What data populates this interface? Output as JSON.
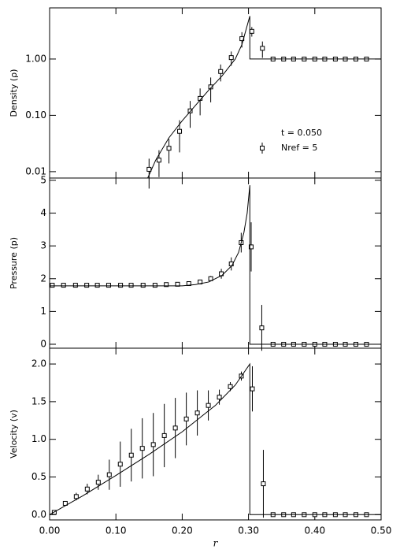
{
  "chart_data": [
    {
      "type": "line",
      "ylabel": "Density (ρ)",
      "log_y": true,
      "xlim": [
        0,
        0.5
      ],
      "xticks": [
        0,
        0.1,
        0.2,
        0.3,
        0.4,
        0.5
      ],
      "ylim": [
        0.0077,
        8.1
      ],
      "yticks": [
        {
          "value": 0.01,
          "label": "0.01"
        },
        {
          "value": 0.1,
          "label": "0.10"
        },
        {
          "value": 1,
          "label": "1.00"
        }
      ],
      "annotation": "t = 0.050",
      "series": [
        {
          "name": "Nref = 5",
          "style": "points",
          "color": "#000000",
          "x": [
            0.15,
            0.165,
            0.18,
            0.196,
            0.212,
            0.227,
            0.243,
            0.258,
            0.274,
            0.29,
            0.305,
            0.321,
            0.337,
            0.353,
            0.368,
            0.384,
            0.4,
            0.415,
            0.431,
            0.446,
            0.462,
            0.478
          ],
          "values": [
            0.011,
            0.016,
            0.026,
            0.052,
            0.12,
            0.2,
            0.32,
            0.6,
            1.06,
            2.3,
            3.1,
            1.55,
            1,
            1,
            1,
            1,
            1,
            1,
            1,
            1,
            1,
            1
          ],
          "errors": [
            0.006,
            0.008,
            0.012,
            0.03,
            0.06,
            0.1,
            0.15,
            0.2,
            0.3,
            0.7,
            0.6,
            0.5,
            0,
            0,
            0,
            0,
            0,
            0,
            0,
            0,
            0,
            0
          ]
        },
        {
          "style": "line",
          "color": "#000000",
          "x": [
            0.148,
            0.16,
            0.18,
            0.2,
            0.22,
            0.24,
            0.26,
            0.28,
            0.29,
            0.302,
            0.302,
            0.5
          ],
          "values": [
            0.0077,
            0.016,
            0.04,
            0.08,
            0.15,
            0.28,
            0.5,
            1.0,
            1.8,
            5.8,
            1.0,
            1.0
          ]
        }
      ]
    },
    {
      "type": "line",
      "ylabel": "Pressure (p)",
      "xlim": [
        0,
        0.5
      ],
      "xticks": [
        0,
        0.1,
        0.2,
        0.3,
        0.4,
        0.5
      ],
      "ylim": [
        -0.12,
        5.07
      ],
      "yticks": [
        0,
        1,
        2,
        3,
        4,
        5
      ],
      "series": [
        {
          "style": "points",
          "color": "#000000",
          "x": [
            0.004,
            0.021,
            0.039,
            0.056,
            0.072,
            0.089,
            0.107,
            0.123,
            0.141,
            0.159,
            0.176,
            0.193,
            0.21,
            0.227,
            0.243,
            0.259,
            0.274,
            0.289,
            0.304,
            0.32,
            0.337,
            0.353,
            0.368,
            0.384,
            0.4,
            0.415,
            0.431,
            0.446,
            0.462,
            0.478
          ],
          "values": [
            1.8,
            1.8,
            1.8,
            1.8,
            1.8,
            1.8,
            1.8,
            1.8,
            1.8,
            1.8,
            1.82,
            1.83,
            1.85,
            1.9,
            2.0,
            2.15,
            2.45,
            3.1,
            2.97,
            0.5,
            0,
            0,
            0,
            0,
            0,
            0,
            0,
            0,
            0,
            0
          ],
          "errors": [
            0.03,
            0.03,
            0.03,
            0.03,
            0.03,
            0.03,
            0.03,
            0.03,
            0.03,
            0.03,
            0.03,
            0.03,
            0.04,
            0.05,
            0.08,
            0.15,
            0.2,
            0.3,
            0.75,
            0.7,
            0.03,
            0.03,
            0.03,
            0.03,
            0.03,
            0.03,
            0.03,
            0.03,
            0.03,
            0.03
          ]
        },
        {
          "style": "line",
          "color": "#000000",
          "x": [
            0,
            0.2,
            0.22,
            0.24,
            0.26,
            0.275,
            0.285,
            0.293,
            0.298,
            0.302,
            0.302,
            0.5
          ],
          "values": [
            1.78,
            1.78,
            1.82,
            1.9,
            2.1,
            2.4,
            2.8,
            3.4,
            4.0,
            4.85,
            0,
            0
          ]
        }
      ]
    },
    {
      "type": "line",
      "ylabel": "Velocity (v)",
      "xlabel": "r",
      "xlim": [
        0,
        0.5
      ],
      "xticks": [
        {
          "value": 0,
          "label": "0.00"
        },
        {
          "value": 0.1,
          "label": "0.10"
        },
        {
          "value": 0.2,
          "label": "0.20"
        },
        {
          "value": 0.3,
          "label": "0.30"
        },
        {
          "value": 0.4,
          "label": "0.40"
        },
        {
          "value": 0.5,
          "label": "0.50"
        }
      ],
      "ylim": [
        -0.07,
        2.21
      ],
      "yticks": [
        {
          "value": 0,
          "label": "0.0"
        },
        {
          "value": 0.5,
          "label": "0.5"
        },
        {
          "value": 1,
          "label": "1.0"
        },
        {
          "value": 1.5,
          "label": "1.5"
        },
        {
          "value": 2,
          "label": "2.0"
        }
      ],
      "series": [
        {
          "style": "points",
          "color": "#000000",
          "x": [
            0.007,
            0.0236,
            0.0402,
            0.0568,
            0.0734,
            0.09,
            0.1066,
            0.1232,
            0.1398,
            0.1564,
            0.173,
            0.1896,
            0.2062,
            0.2228,
            0.2394,
            0.256,
            0.2726,
            0.2892,
            0.3058,
            0.3224,
            0.337,
            0.353,
            0.368,
            0.384,
            0.4,
            0.415,
            0.431,
            0.446,
            0.462,
            0.478
          ],
          "values": [
            0.03,
            0.15,
            0.24,
            0.34,
            0.43,
            0.53,
            0.67,
            0.79,
            0.88,
            0.93,
            1.05,
            1.15,
            1.27,
            1.35,
            1.45,
            1.56,
            1.7,
            1.84,
            1.67,
            0.41,
            0,
            0,
            0,
            0,
            0,
            0,
            0,
            0,
            0,
            0
          ],
          "errors": [
            0.03,
            0.03,
            0.05,
            0.07,
            0.1,
            0.2,
            0.3,
            0.35,
            0.4,
            0.42,
            0.42,
            0.4,
            0.35,
            0.3,
            0.2,
            0.1,
            0.06,
            0.06,
            0.3,
            0.45,
            0.02,
            0.02,
            0.02,
            0.02,
            0.02,
            0.02,
            0.02,
            0.02,
            0.02,
            0.02
          ]
        },
        {
          "style": "line",
          "color": "#000000",
          "x": [
            0,
            0.05,
            0.1,
            0.15,
            0.2,
            0.25,
            0.28,
            0.302,
            0.302,
            0.5
          ],
          "values": [
            0,
            0.25,
            0.52,
            0.8,
            1.1,
            1.45,
            1.72,
            2.0,
            0,
            0
          ]
        }
      ]
    }
  ]
}
